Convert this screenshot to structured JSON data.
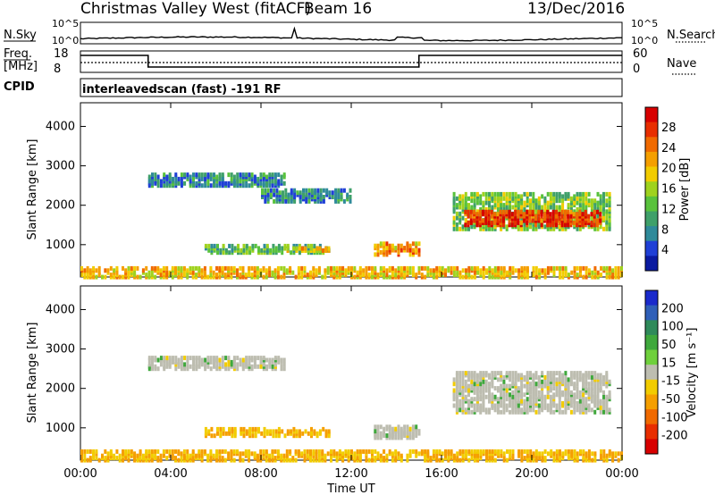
{
  "header": {
    "title": "Christmas Valley West (fitACF)",
    "beam": "Beam 16",
    "date": "13/Dec/2016"
  },
  "noise_panel": {
    "left_label": "N.Sky",
    "right_label": "N.Search",
    "left_ticks": [
      "10^5",
      "10^0"
    ],
    "right_ticks": [
      "10^5",
      "10^0"
    ]
  },
  "freq_panel": {
    "left_label_top": "Freq.",
    "left_label_bottom": "[MHz]",
    "right_label": "Nave",
    "left_ticks": [
      "18",
      "8"
    ],
    "right_ticks": [
      "60",
      "0"
    ],
    "freq_steps": [
      {
        "from": "00:00",
        "to": "03:00",
        "level": "high"
      },
      {
        "from": "03:00",
        "to": "15:00",
        "level": "low"
      },
      {
        "from": "15:00",
        "to": "24:00",
        "level": "high"
      }
    ]
  },
  "cpid": {
    "label": "CPID",
    "program": "interleavedscan (fast) -191 RF"
  },
  "chart_data": [
    {
      "type": "heatmap",
      "name": "power",
      "ylabel": "Slant Range [km]",
      "xlabel": "",
      "y_ticks": [
        "1000",
        "2000",
        "3000",
        "4000"
      ],
      "y_range": [
        180,
        4600
      ],
      "x_range_hours": [
        0,
        24
      ],
      "colorbar": {
        "label": "Power [dB]",
        "ticks": [
          "4",
          "8",
          "12",
          "16",
          "20",
          "24",
          "28"
        ],
        "range": [
          0,
          32
        ],
        "colors": [
          "#0a1aa0",
          "#1f3fd6",
          "#2f8a9a",
          "#3fa06a",
          "#59c23c",
          "#9fd21e",
          "#f2cc00",
          "#f59f00",
          "#f06a00",
          "#e82e00",
          "#d80000"
        ]
      },
      "features": [
        {
          "t0": 0.0,
          "t1": 24.0,
          "r0": 180,
          "r1": 420,
          "level": 20
        },
        {
          "t0": 5.5,
          "t1": 11.0,
          "r0": 800,
          "r1": 1000,
          "level": 12
        },
        {
          "t0": 9.0,
          "t1": 11.0,
          "r0": 850,
          "r1": 950,
          "level": 20
        },
        {
          "t0": 13.0,
          "t1": 15.0,
          "r0": 750,
          "r1": 1050,
          "level": 22
        },
        {
          "t0": 3.0,
          "t1": 9.0,
          "r0": 2500,
          "r1": 2800,
          "level": 8
        },
        {
          "t0": 8.0,
          "t1": 12.0,
          "r0": 2100,
          "r1": 2400,
          "level": 8
        },
        {
          "t0": 16.5,
          "t1": 23.5,
          "r0": 1400,
          "r1": 2300,
          "level": 14
        },
        {
          "t0": 17.0,
          "t1": 23.0,
          "r0": 1500,
          "r1": 1850,
          "level": 28
        }
      ]
    },
    {
      "type": "heatmap",
      "name": "velocity",
      "ylabel": "Slant Range [km]",
      "xlabel": "Time UT",
      "y_ticks": [
        "1000",
        "2000",
        "3000",
        "4000"
      ],
      "y_range": [
        180,
        4600
      ],
      "x_range_hours": [
        0,
        24
      ],
      "x_ticks": [
        "00:00",
        "04:00",
        "08:00",
        "12:00",
        "16:00",
        "20:00",
        "00:00"
      ],
      "colorbar": {
        "label": "Velocity [m s⁻¹]",
        "ticks": [
          "200",
          "100",
          "50",
          "15",
          "-15",
          "-50",
          "-100",
          "-200"
        ],
        "colors": [
          "#1a2acc",
          "#2f5fb8",
          "#2f8a5a",
          "#3fa83c",
          "#6fd03c",
          "#bdbdb0",
          "#f2cc00",
          "#f59f00",
          "#f06a00",
          "#e82e00",
          "#d80000"
        ]
      },
      "features": [
        {
          "t0": 0.0,
          "t1": 24.0,
          "r0": 180,
          "r1": 420,
          "level": -50
        },
        {
          "t0": 5.5,
          "t1": 11.0,
          "r0": 800,
          "r1": 1000,
          "level": -50
        },
        {
          "t0": 13.0,
          "t1": 15.0,
          "r0": 750,
          "r1": 1050,
          "level": 0
        },
        {
          "t0": 3.0,
          "t1": 9.0,
          "r0": 2500,
          "r1": 2800,
          "level": 0
        },
        {
          "t0": 16.5,
          "t1": 23.5,
          "r0": 1400,
          "r1": 2400,
          "level": 0
        }
      ]
    }
  ]
}
